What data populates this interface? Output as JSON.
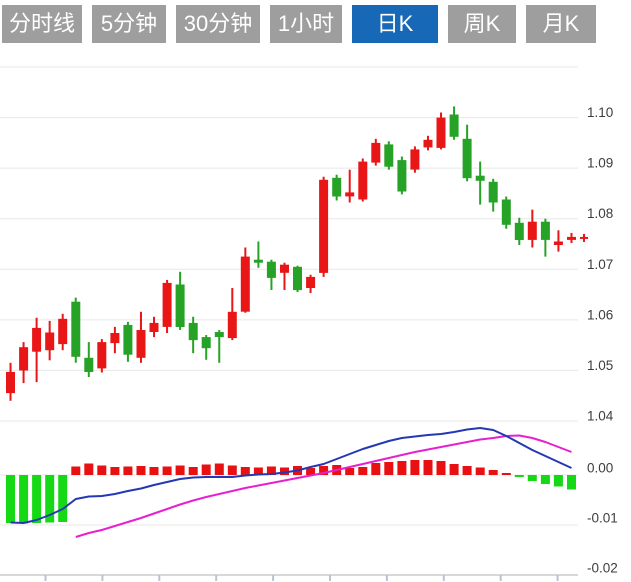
{
  "tabs": {
    "items": [
      {
        "label": "分时线"
      },
      {
        "label": "5分钟"
      },
      {
        "label": "30分钟"
      },
      {
        "label": "1小时"
      },
      {
        "label": "日K"
      },
      {
        "label": "周K"
      },
      {
        "label": "月K"
      }
    ],
    "active_label": "日K",
    "active_index": 4
  },
  "colors": {
    "tab_bg": "#9e9e9e",
    "tab_active_bg": "#1768b6",
    "tab_text": "#ffffff",
    "up_red": "#e81616",
    "down_green": "#26a326",
    "hist_green": "#16d916",
    "hist_red": "#e81010",
    "dif_blue": "#2438b4",
    "dea_magenta": "#e81fd0",
    "gridline": "#e7e7e7",
    "axis_line": "#cccccc",
    "axis_tick": "#b9c3d2",
    "label_text": "#3d3d3d",
    "marker_red": "#e81616"
  },
  "chart_data": {
    "type": "candlestick-with-macd",
    "grid": true,
    "legend": "none",
    "price_axis": {
      "side": "right",
      "range_top": 1.11,
      "range_bottom": 1.04,
      "gridline_values": [
        1.11,
        1.1,
        1.09,
        1.08,
        1.07,
        1.06,
        1.05,
        1.04
      ],
      "tick_labels": [
        "1.10",
        "1.09",
        "1.08",
        "1.07",
        "1.06",
        "1.05",
        "1.04"
      ],
      "tick_values": [
        1.1,
        1.09,
        1.08,
        1.07,
        1.06,
        1.05,
        1.04
      ]
    },
    "macd_axis": {
      "side": "right",
      "range_top": 0.0108,
      "range_bottom": -0.02,
      "gridline_values": [
        0,
        -0.01
      ],
      "tick_labels": [
        "0.00",
        "-0.01",
        "-0.02"
      ],
      "tick_values": [
        0,
        -0.01,
        -0.02
      ]
    },
    "xaxis": {
      "tick_count": 10,
      "labels_visible": false
    },
    "candles": [
      {
        "o": 1.0455,
        "c": 1.0497,
        "h": 1.0515,
        "l": 1.044
      },
      {
        "o": 1.05,
        "c": 1.0546,
        "h": 1.0556,
        "l": 1.0475
      },
      {
        "o": 1.0537,
        "c": 1.0584,
        "h": 1.0604,
        "l": 1.0477
      },
      {
        "o": 1.054,
        "c": 1.0575,
        "h": 1.0598,
        "l": 1.052
      },
      {
        "o": 1.0552,
        "c": 1.0602,
        "h": 1.0612,
        "l": 1.054
      },
      {
        "o": 1.0636,
        "c": 1.0527,
        "h": 1.0644,
        "l": 1.0515
      },
      {
        "o": 1.0525,
        "c": 1.0497,
        "h": 1.0556,
        "l": 1.0487
      },
      {
        "o": 1.0504,
        "c": 1.0556,
        "h": 1.0562,
        "l": 1.0496
      },
      {
        "o": 1.0554,
        "c": 1.0574,
        "h": 1.0586,
        "l": 1.0534
      },
      {
        "o": 1.059,
        "c": 1.0531,
        "h": 1.0596,
        "l": 1.0517
      },
      {
        "o": 1.0525,
        "c": 1.058,
        "h": 1.0616,
        "l": 1.0515
      },
      {
        "o": 1.0576,
        "c": 1.0594,
        "h": 1.0606,
        "l": 1.0566
      },
      {
        "o": 1.0586,
        "c": 1.0673,
        "h": 1.0679,
        "l": 1.0574
      },
      {
        "o": 1.067,
        "c": 1.0586,
        "h": 1.0695,
        "l": 1.058
      },
      {
        "o": 1.0594,
        "c": 1.056,
        "h": 1.0606,
        "l": 1.0534
      },
      {
        "o": 1.0566,
        "c": 1.0544,
        "h": 1.057,
        "l": 1.0521
      },
      {
        "o": 1.0576,
        "c": 1.0566,
        "h": 1.058,
        "l": 1.0515
      },
      {
        "o": 1.0564,
        "c": 1.0616,
        "h": 1.0663,
        "l": 1.056
      },
      {
        "o": 1.0616,
        "c": 1.0725,
        "h": 1.0743,
        "l": 1.0614
      },
      {
        "o": 1.0719,
        "c": 1.0713,
        "h": 1.0755,
        "l": 1.0703
      },
      {
        "o": 1.0715,
        "c": 1.0683,
        "h": 1.0719,
        "l": 1.0659
      },
      {
        "o": 1.0693,
        "c": 1.0709,
        "h": 1.0713,
        "l": 1.0659
      },
      {
        "o": 1.0705,
        "c": 1.0659,
        "h": 1.0707,
        "l": 1.0655
      },
      {
        "o": 1.0663,
        "c": 1.0685,
        "h": 1.0689,
        "l": 1.0653
      },
      {
        "o": 1.0693,
        "c": 1.0877,
        "h": 1.0883,
        "l": 1.0685
      },
      {
        "o": 1.0881,
        "c": 1.0844,
        "h": 1.0887,
        "l": 1.0836
      },
      {
        "o": 1.0844,
        "c": 1.0852,
        "h": 1.0897,
        "l": 1.0832
      },
      {
        "o": 1.0838,
        "c": 1.0913,
        "h": 1.0919,
        "l": 1.0834
      },
      {
        "o": 1.0911,
        "c": 1.095,
        "h": 1.0958,
        "l": 1.0905
      },
      {
        "o": 1.0947,
        "c": 1.0903,
        "h": 1.0953,
        "l": 1.0897
      },
      {
        "o": 1.0916,
        "c": 1.0854,
        "h": 1.0923,
        "l": 1.0848
      },
      {
        "o": 1.0897,
        "c": 1.0937,
        "h": 1.0943,
        "l": 1.0891
      },
      {
        "o": 1.0941,
        "c": 1.0956,
        "h": 1.0964,
        "l": 1.0935
      },
      {
        "o": 1.094,
        "c": 1.1,
        "h": 1.101,
        "l": 1.0937
      },
      {
        "o": 1.1006,
        "c": 1.0962,
        "h": 1.1022,
        "l": 1.0956
      },
      {
        "o": 1.0958,
        "c": 1.088,
        "h": 1.0986,
        "l": 1.0874
      },
      {
        "o": 1.0885,
        "c": 1.0875,
        "h": 1.0913,
        "l": 1.0828
      },
      {
        "o": 1.0873,
        "c": 1.0832,
        "h": 1.0879,
        "l": 1.0814
      },
      {
        "o": 1.0838,
        "c": 1.0788,
        "h": 1.0844,
        "l": 1.078
      },
      {
        "o": 1.0792,
        "c": 1.0758,
        "h": 1.0802,
        "l": 1.0748
      },
      {
        "o": 1.0758,
        "c": 1.0794,
        "h": 1.0818,
        "l": 1.0743
      },
      {
        "o": 1.0794,
        "c": 1.0758,
        "h": 1.08,
        "l": 1.0725
      },
      {
        "o": 1.0748,
        "c": 1.0755,
        "h": 1.0777,
        "l": 1.0735
      },
      {
        "o": 1.0758,
        "c": 1.0764,
        "h": 1.0772,
        "l": 1.0752
      }
    ],
    "macd": {
      "hist": [
        -0.0096,
        -0.0097,
        -0.0096,
        -0.0095,
        -0.0094,
        0.0017,
        0.0023,
        0.0019,
        0.0016,
        0.0017,
        0.0018,
        0.0016,
        0.0017,
        0.0019,
        0.0016,
        0.0021,
        0.0023,
        0.0019,
        0.0016,
        0.0015,
        0.0017,
        0.0015,
        0.0018,
        0.0014,
        0.0018,
        0.002,
        0.0014,
        0.0016,
        0.0024,
        0.0026,
        0.0028,
        0.003,
        0.003,
        0.0028,
        0.0022,
        0.0018,
        0.0015,
        0.001,
        0.0004,
        -0.0004,
        -0.0012,
        -0.0018,
        -0.0023,
        -0.0029
      ],
      "dif": [
        -0.0095,
        -0.0096,
        -0.009,
        -0.008,
        -0.0068,
        -0.0048,
        -0.0043,
        -0.0042,
        -0.0038,
        -0.0032,
        -0.0027,
        -0.002,
        -0.0014,
        -0.0008,
        -0.0005,
        -0.0004,
        -0.0004,
        -0.0004,
        -0.0001,
        0.0001,
        0.0002,
        0.0005,
        0.0009,
        0.0016,
        0.0022,
        0.0032,
        0.0042,
        0.0052,
        0.006,
        0.0068,
        0.0074,
        0.0077,
        0.008,
        0.0082,
        0.0086,
        0.0091,
        0.0094,
        0.009,
        0.0078,
        0.0064,
        0.005,
        0.0038,
        0.0026,
        0.0014
      ],
      "dea": [
        null,
        null,
        null,
        null,
        null,
        -0.0124,
        -0.0116,
        -0.011,
        -0.0102,
        -0.0094,
        -0.0086,
        -0.0077,
        -0.0068,
        -0.0059,
        -0.0051,
        -0.0044,
        -0.0038,
        -0.0032,
        -0.0026,
        -0.0021,
        -0.0016,
        -0.0011,
        -0.0006,
        -0.0001,
        0.0004,
        0.001,
        0.0016,
        0.0022,
        0.0028,
        0.0034,
        0.004,
        0.0046,
        0.0051,
        0.0056,
        0.0061,
        0.0066,
        0.0071,
        0.0074,
        0.0078,
        0.0079,
        0.0074,
        0.0066,
        0.0056,
        0.0046
      ]
    },
    "last_price_marker": {
      "price": 1.0762,
      "symbol": "+"
    }
  }
}
